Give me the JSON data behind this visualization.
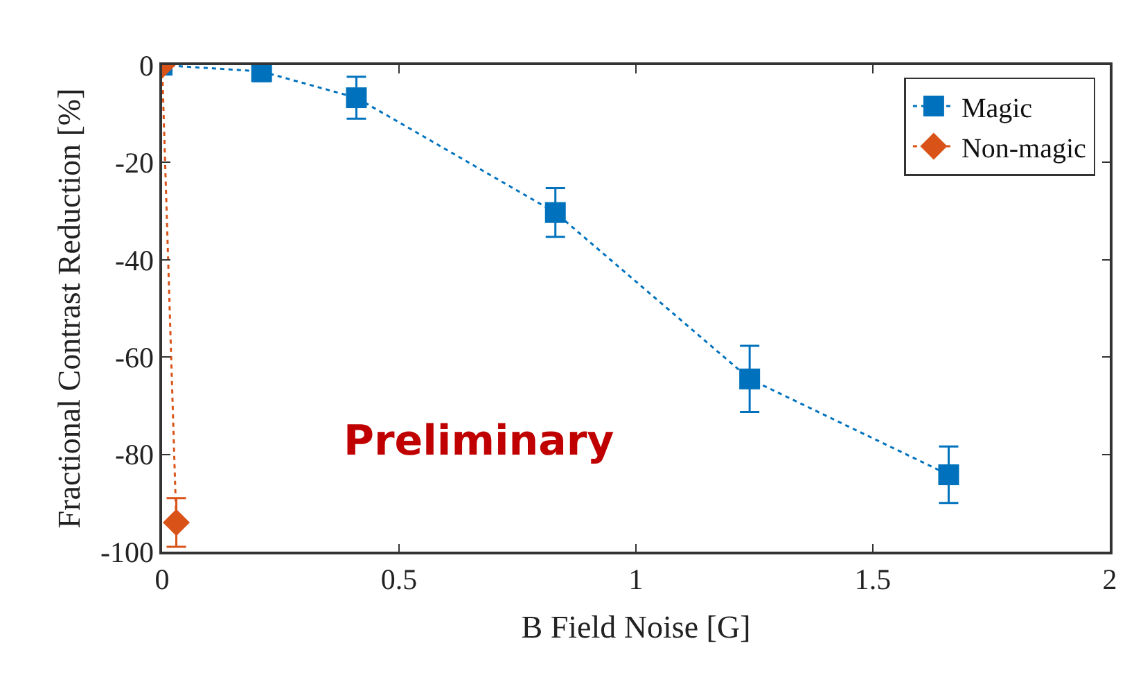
{
  "chart_data": {
    "type": "line",
    "xlabel": "B Field Noise [G]",
    "ylabel": "Fractional Contrast Reduction [%]",
    "xlim": [
      0,
      2
    ],
    "xticks": [
      0,
      0.5,
      1,
      1.5,
      2
    ],
    "ylim": [
      -100,
      0
    ],
    "yticks": [
      -100,
      -80,
      -60,
      -40,
      -20,
      0
    ],
    "legend": "top right",
    "line_style": "dotted",
    "annotations": [
      "Preliminary"
    ],
    "series": [
      {
        "name": "Magic",
        "color": "#0072bd",
        "marker": "square",
        "x": [
          0,
          0.21,
          0.41,
          0.83,
          1.24,
          1.66
        ],
        "values": [
          0,
          -1.3,
          -6.7,
          -30.3,
          -64.5,
          -84.2
        ],
        "errors": [
          null,
          2,
          4.3,
          5,
          6.8,
          5.8
        ]
      },
      {
        "name": "Non-magic",
        "color": "#d95319",
        "marker": "diamond",
        "x": [
          0,
          0.03
        ],
        "values": [
          0,
          -94
        ],
        "errors": [
          null,
          5
        ]
      }
    ]
  }
}
